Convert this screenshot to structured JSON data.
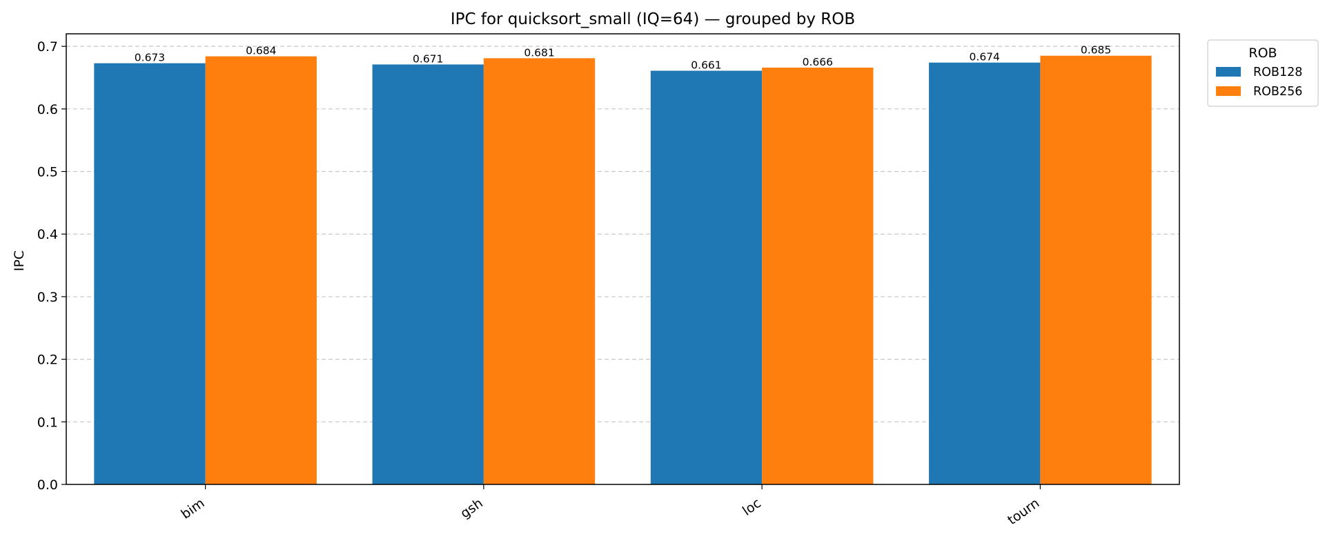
{
  "chart_data": {
    "type": "bar",
    "title": "IPC for quicksort_small (IQ=64) — grouped by ROB",
    "xlabel": "",
    "ylabel": "IPC",
    "categories": [
      "bim",
      "gsh",
      "loc",
      "tourn"
    ],
    "series": [
      {
        "name": "ROB128",
        "color": "#1f77b4",
        "values": [
          0.673,
          0.671,
          0.661,
          0.674
        ]
      },
      {
        "name": "ROB256",
        "color": "#ff7f0e",
        "values": [
          0.684,
          0.681,
          0.666,
          0.685
        ]
      }
    ],
    "value_labels": [
      [
        "0.673",
        "0.671",
        "0.661",
        "0.674"
      ],
      [
        "0.684",
        "0.681",
        "0.666",
        "0.685"
      ]
    ],
    "ylim": [
      0,
      0.72
    ],
    "yticks": [
      0.0,
      0.1,
      0.2,
      0.3,
      0.4,
      0.5,
      0.6,
      0.7
    ],
    "ytick_labels": [
      "0.0",
      "0.1",
      "0.2",
      "0.3",
      "0.4",
      "0.5",
      "0.6",
      "0.7"
    ],
    "grid": {
      "axis": "y",
      "style": "dashed"
    },
    "legend": {
      "title": "ROB",
      "placement": "outside-top-right"
    }
  }
}
